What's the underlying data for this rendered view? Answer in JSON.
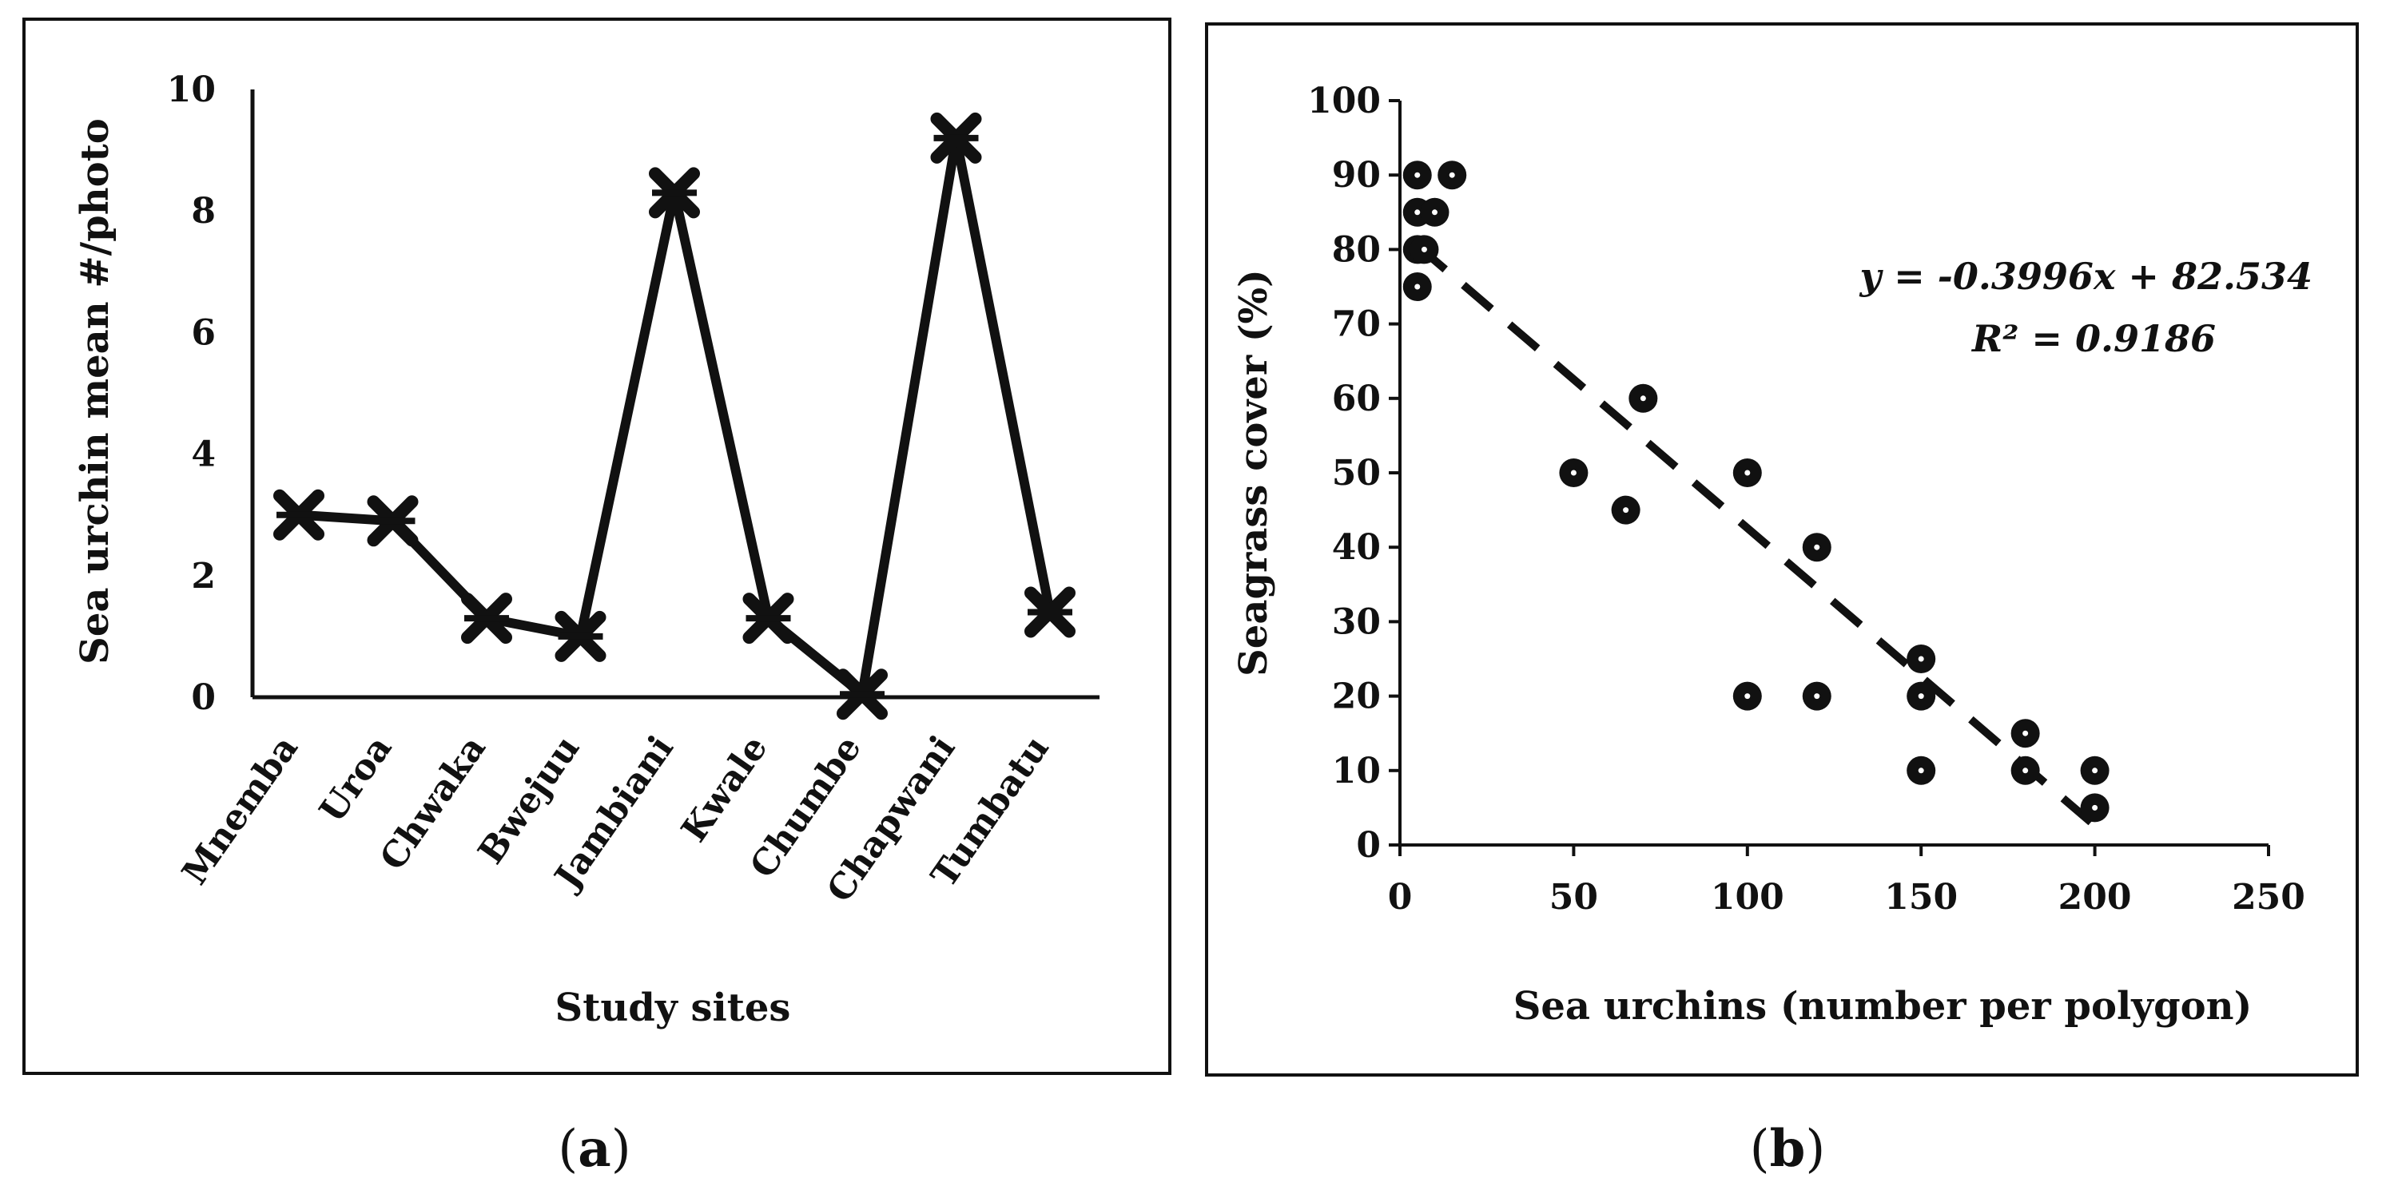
{
  "chart_data": [
    {
      "panel": "(a)",
      "panel_letter": "a",
      "type": "line",
      "xlabel": "Study sites",
      "ylabel": "Sea urchin mean #/photo",
      "ylim": [
        0,
        10
      ],
      "yticks": [
        0,
        2,
        4,
        6,
        8,
        10
      ],
      "categories": [
        "Mnemba",
        "Uroa",
        "Chwaka",
        "Bwejuu",
        "Jambiani",
        "Kwale",
        "Chumbe",
        "Chapwani",
        "Tumbatu"
      ],
      "values": [
        3.0,
        2.9,
        1.3,
        1.0,
        8.3,
        1.3,
        0.05,
        9.2,
        1.4
      ],
      "marker": "x"
    },
    {
      "panel": "(b)",
      "panel_letter": "b",
      "type": "scatter",
      "xlabel": "Sea urchins (number per polygon)",
      "ylabel": "Seagrass cover (%)",
      "xlim": [
        0,
        250
      ],
      "ylim": [
        0,
        100
      ],
      "xticks": [
        0,
        50,
        100,
        150,
        200,
        250
      ],
      "yticks": [
        0,
        10,
        20,
        30,
        40,
        50,
        60,
        70,
        80,
        90,
        100
      ],
      "points": [
        {
          "x": 5,
          "y": 90
        },
        {
          "x": 15,
          "y": 90
        },
        {
          "x": 5,
          "y": 85
        },
        {
          "x": 10,
          "y": 85
        },
        {
          "x": 5,
          "y": 80
        },
        {
          "x": 7,
          "y": 80
        },
        {
          "x": 5,
          "y": 75
        },
        {
          "x": 50,
          "y": 50
        },
        {
          "x": 65,
          "y": 45
        },
        {
          "x": 70,
          "y": 60
        },
        {
          "x": 100,
          "y": 50
        },
        {
          "x": 100,
          "y": 20
        },
        {
          "x": 120,
          "y": 40
        },
        {
          "x": 120,
          "y": 20
        },
        {
          "x": 150,
          "y": 25
        },
        {
          "x": 150,
          "y": 20
        },
        {
          "x": 150,
          "y": 10
        },
        {
          "x": 180,
          "y": 15
        },
        {
          "x": 180,
          "y": 10
        },
        {
          "x": 200,
          "y": 10
        },
        {
          "x": 200,
          "y": 5
        }
      ],
      "trendline": {
        "slope": -0.3996,
        "intercept": 82.534,
        "x_range": [
          5,
          200
        ],
        "style": "dashed"
      },
      "equation": "y = -0.3996x + 82.534",
      "r_squared": "R² = 0.9186"
    }
  ]
}
